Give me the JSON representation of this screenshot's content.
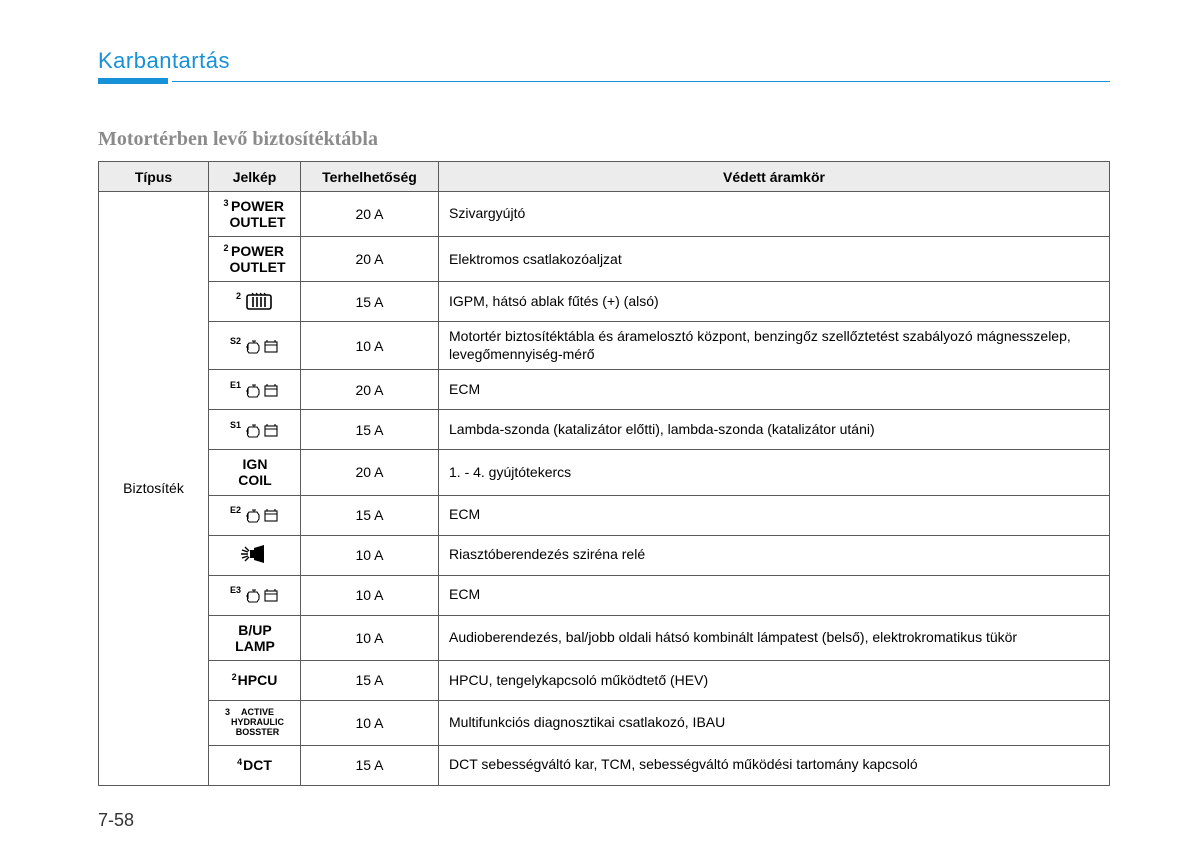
{
  "header": {
    "section": "Karbantartás"
  },
  "subtitle": "Motortérben levő biztosítéktábla",
  "columns": {
    "type": "Típus",
    "symbol": "Jelkép",
    "rating": "Terhelhetőség",
    "circuit": "Védett áramkör"
  },
  "type_label": "Biztosíték",
  "rows": [
    {
      "symbol_kind": "text",
      "sup": "3",
      "lines": [
        "POWER",
        "OUTLET"
      ],
      "rating": "20 A",
      "desc": "Szivargyújtó"
    },
    {
      "symbol_kind": "text",
      "sup": "2",
      "lines": [
        "POWER",
        "OUTLET"
      ],
      "rating": "20 A",
      "desc": "Elektromos csatlakozóaljzat"
    },
    {
      "symbol_kind": "defrost",
      "sup": "2",
      "rating": "15 A",
      "desc": "IGPM, hátsó ablak fűtés (+) (alsó)"
    },
    {
      "symbol_kind": "engine",
      "sup": "S2",
      "rating": "10 A",
      "desc": "Motortér biztosítéktábla és áramelosztó központ, benzingőz szellőztetést szabályozó mágnesszelep, levegőmennyiség-mérő"
    },
    {
      "symbol_kind": "engine",
      "sup": "E1",
      "rating": "20 A",
      "desc": "ECM"
    },
    {
      "symbol_kind": "engine",
      "sup": "S1",
      "rating": "15 A",
      "desc": "Lambda-szonda (katalizátor előtti), lambda-szonda (katalizátor utáni)"
    },
    {
      "symbol_kind": "text",
      "sup": "",
      "lines": [
        "IGN",
        "COIL"
      ],
      "rating": "20 A",
      "desc": "1. - 4. gyújtótekercs"
    },
    {
      "symbol_kind": "engine",
      "sup": "E2",
      "rating": "15 A",
      "desc": "ECM"
    },
    {
      "symbol_kind": "horn",
      "sup": "",
      "rating": "10 A",
      "desc": "Riasztóberendezés sziréna relé"
    },
    {
      "symbol_kind": "engine",
      "sup": "E3",
      "rating": "10 A",
      "desc": "ECM"
    },
    {
      "symbol_kind": "text",
      "sup": "",
      "lines": [
        "B/UP",
        "LAMP"
      ],
      "rating": "10 A",
      "desc": "Audioberendezés, bal/jobb oldali hátsó kombinált lámpatest (belső), elektrokromatikus tükör"
    },
    {
      "symbol_kind": "text",
      "sup": "2",
      "lines": [
        "HPCU"
      ],
      "rating": "15 A",
      "desc": "HPCU, tengelykapcsoló működtető (HEV)"
    },
    {
      "symbol_kind": "text",
      "sup": "3",
      "lines": [
        "ACTIVE",
        "HYDRAULIC",
        "BOSSTER"
      ],
      "font_size": 9,
      "rating": "10 A",
      "desc": "Multifunkciós diagnosztikai csatlakozó, IBAU"
    },
    {
      "symbol_kind": "text",
      "sup": "4",
      "lines": [
        "DCT"
      ],
      "rating": "15 A",
      "desc": "DCT sebességváltó kar, TCM, sebességváltó működési tartomány kapcsoló"
    }
  ],
  "page_number": "7-58",
  "colors": {
    "accent": "#1791d8",
    "header_bg": "#ececec",
    "border": "#5a5a5a",
    "subtitle_gray": "#8b8b8b"
  }
}
